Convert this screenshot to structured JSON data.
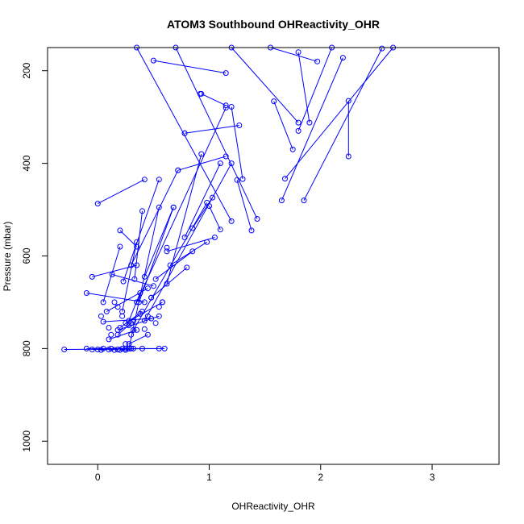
{
  "chart_data": {
    "type": "line",
    "title": "ATOM3 Southbound OHReactivity_OHR",
    "xlabel": "OHReactivity_OHR",
    "ylabel": "Pressure (mbar)",
    "xlim": [
      -0.45,
      3.6
    ],
    "ylim": [
      1050,
      150
    ],
    "y_reversed": true,
    "x_ticks": [
      0,
      1,
      2,
      3
    ],
    "y_ticks": [
      200,
      400,
      600,
      800,
      1000
    ],
    "grid": false,
    "legend": "none",
    "marker": "open-circle",
    "series_color": "#0000ff",
    "series": [
      {
        "points": [
          [
            2.25,
            385
          ],
          [
            2.25,
            265
          ]
        ]
      },
      {
        "points": [
          [
            1.85,
            480
          ],
          [
            2.55,
            152
          ]
        ]
      },
      {
        "points": [
          [
            1.65,
            480
          ],
          [
            2.2,
            172
          ]
        ]
      },
      {
        "points": [
          [
            1.68,
            433
          ],
          [
            2.65,
            150
          ]
        ]
      },
      {
        "points": [
          [
            1.75,
            370
          ],
          [
            1.58,
            266
          ]
        ]
      },
      {
        "points": [
          [
            1.8,
            330
          ],
          [
            2.1,
            150
          ]
        ]
      },
      {
        "points": [
          [
            1.8,
            312
          ],
          [
            1.2,
            150
          ]
        ]
      },
      {
        "points": [
          [
            1.9,
            312
          ],
          [
            1.8,
            160
          ]
        ]
      },
      {
        "points": [
          [
            1.97,
            180
          ],
          [
            1.55,
            150
          ]
        ]
      },
      {
        "points": [
          [
            1.38,
            545
          ],
          [
            1.25,
            436
          ]
        ]
      },
      {
        "points": [
          [
            1.43,
            520
          ],
          [
            0.7,
            150
          ]
        ]
      },
      {
        "points": [
          [
            1.2,
            525
          ],
          [
            0.35,
            150
          ]
        ]
      },
      {
        "points": [
          [
            1.3,
            434
          ],
          [
            1.2,
            278
          ]
        ]
      },
      {
        "points": [
          [
            1.27,
            318
          ],
          [
            0.78,
            335
          ]
        ]
      },
      {
        "points": [
          [
            1.15,
            275
          ],
          [
            0.93,
            250
          ]
        ]
      },
      {
        "points": [
          [
            1.15,
            205
          ],
          [
            0.5,
            178
          ]
        ]
      },
      {
        "points": [
          [
            1.15,
            385
          ],
          [
            0.72,
            415
          ]
        ]
      },
      {
        "points": [
          [
            1.1,
            543
          ],
          [
            1.0,
            492
          ]
        ]
      },
      {
        "points": [
          [
            1.03,
            474
          ],
          [
            0.85,
            540
          ]
        ]
      },
      {
        "points": [
          [
            1.1,
            400
          ],
          [
            0.78,
            560
          ]
        ]
      },
      {
        "points": [
          [
            1.05,
            560
          ],
          [
            0.62,
            590
          ]
        ]
      },
      {
        "points": [
          [
            0.98,
            570
          ],
          [
            0.65,
            620
          ]
        ]
      },
      {
        "points": [
          [
            0.93,
            380
          ],
          [
            0.62,
            660
          ]
        ]
      },
      {
        "points": [
          [
            0.85,
            590
          ],
          [
            0.52,
            650
          ]
        ]
      },
      {
        "points": [
          [
            0.8,
            625
          ],
          [
            0.48,
            690
          ]
        ]
      },
      {
        "points": [
          [
            1.15,
            280
          ],
          [
            0.35,
            700
          ]
        ]
      },
      {
        "points": [
          [
            0.98,
            485
          ],
          [
            0.32,
            760
          ]
        ]
      },
      {
        "points": [
          [
            1.2,
            400
          ],
          [
            0.42,
            740
          ]
        ]
      },
      {
        "points": [
          [
            0.68,
            495
          ],
          [
            0.42,
            645
          ]
        ]
      },
      {
        "points": [
          [
            0.68,
            495
          ],
          [
            0.37,
            700
          ]
        ]
      },
      {
        "points": [
          [
            0.55,
            495
          ],
          [
            0.28,
            800
          ]
        ]
      },
      {
        "points": [
          [
            0.4,
            503
          ],
          [
            0.33,
            650
          ]
        ]
      },
      {
        "points": [
          [
            0.35,
            570
          ],
          [
            0.22,
            720
          ]
        ]
      },
      {
        "points": [
          [
            0.72,
            415
          ],
          [
            0.3,
            620
          ]
        ]
      },
      {
        "points": [
          [
            0.42,
            435
          ],
          [
            0.0,
            487
          ]
        ]
      },
      {
        "points": [
          [
            0.55,
            435
          ],
          [
            0.23,
            655
          ]
        ]
      },
      {
        "points": [
          [
            0.2,
            545
          ],
          [
            0.35,
            580
          ]
        ]
      },
      {
        "points": [
          [
            0.2,
            580
          ],
          [
            0.05,
            700
          ]
        ]
      },
      {
        "points": [
          [
            0.35,
            620
          ],
          [
            -0.05,
            645
          ]
        ]
      },
      {
        "points": [
          [
            0.5,
            665
          ],
          [
            0.13,
            640
          ]
        ]
      },
      {
        "points": [
          [
            0.45,
            670
          ],
          [
            0.08,
            720
          ]
        ]
      },
      {
        "points": [
          [
            0.42,
            700
          ],
          [
            -0.1,
            680
          ]
        ]
      },
      {
        "points": [
          [
            0.48,
            735
          ],
          [
            0.05,
            742
          ]
        ]
      },
      {
        "points": [
          [
            0.55,
            730
          ],
          [
            0.18,
            760
          ]
        ]
      },
      {
        "points": [
          [
            0.58,
            700
          ],
          [
            0.25,
            745
          ]
        ]
      },
      {
        "points": [
          [
            0.4,
            720
          ],
          [
            0.2,
            755
          ]
        ]
      },
      {
        "points": [
          [
            0.35,
            760
          ],
          [
            0.1,
            780
          ]
        ]
      },
      {
        "points": [
          [
            0.45,
            770
          ],
          [
            0.28,
            790
          ]
        ]
      },
      {
        "points": [
          [
            0.3,
            745
          ],
          [
            0.18,
            770
          ]
        ]
      },
      {
        "points": [
          [
            0.38,
            680
          ],
          [
            0.28,
            740
          ]
        ]
      },
      {
        "points": [
          [
            0.6,
            800
          ],
          [
            -0.3,
            802
          ]
        ]
      },
      {
        "points": [
          [
            0.55,
            800
          ],
          [
            -0.1,
            800
          ]
        ]
      },
      {
        "points": [
          [
            0.4,
            800
          ],
          [
            -0.05,
            802
          ]
        ]
      },
      {
        "points": [
          [
            0.3,
            800
          ],
          [
            0.0,
            802
          ]
        ]
      },
      {
        "points": [
          [
            0.25,
            800
          ],
          [
            0.1,
            802
          ]
        ]
      },
      {
        "points": [
          [
            0.18,
            802
          ],
          [
            0.05,
            800
          ]
        ]
      },
      {
        "points": [
          [
            0.28,
            800
          ],
          [
            0.2,
            803
          ]
        ]
      },
      {
        "points": [
          [
            0.22,
            800
          ],
          [
            0.15,
            803
          ]
        ]
      },
      {
        "points": [
          [
            0.12,
            800
          ],
          [
            0.03,
            803
          ]
        ]
      },
      {
        "points": [
          [
            0.32,
            800
          ],
          [
            0.25,
            803
          ]
        ]
      }
    ],
    "scatter_points": [
      [
        0.92,
        250
      ],
      [
        0.78,
        335
      ],
      [
        0.62,
        582
      ],
      [
        0.58,
        700
      ],
      [
        0.55,
        710
      ],
      [
        0.45,
        730
      ],
      [
        0.42,
        758
      ],
      [
        0.3,
        770
      ],
      [
        0.22,
        730
      ],
      [
        0.25,
        790
      ],
      [
        0.18,
        710
      ],
      [
        0.28,
        750
      ],
      [
        0.32,
        740
      ],
      [
        0.38,
        725
      ],
      [
        0.48,
        690
      ],
      [
        0.52,
        745
      ],
      [
        0.15,
        700
      ],
      [
        0.1,
        755
      ],
      [
        0.03,
        730
      ],
      [
        0.12,
        770
      ]
    ]
  }
}
